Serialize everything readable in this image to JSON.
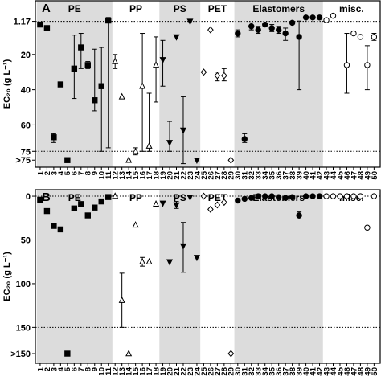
{
  "chart_data": [
    {
      "type": "scatter",
      "panel_label": "A",
      "ylabel": "EC₂₀ (g L⁻¹)",
      "xlim": [
        0.3,
        50.9
      ],
      "xticks": [
        1,
        2,
        3,
        4,
        5,
        6,
        7,
        8,
        9,
        10,
        11,
        12,
        13,
        14,
        15,
        16,
        17,
        18,
        19,
        20,
        21,
        22,
        23,
        24,
        25,
        26,
        27,
        28,
        29,
        30,
        31,
        32,
        33,
        34,
        35,
        36,
        37,
        38,
        39,
        40,
        41,
        42,
        43,
        44,
        45,
        46,
        47,
        48,
        49,
        50
      ],
      "ylim": [
        -10.5,
        84
      ],
      "y_reversed": true,
      "yticks": [
        1.17,
        20,
        40,
        60,
        75,
        {
          "value": 80,
          "label": ">75"
        }
      ],
      "hlines": [
        1.17,
        75
      ],
      "groups": [
        {
          "name": "PE",
          "shaded": true,
          "span": [
            0.5,
            11.6
          ],
          "marker": "square",
          "filled": true,
          "x": [
            1,
            2,
            3,
            4,
            5,
            6,
            7,
            8,
            9,
            10,
            11
          ],
          "values": [
            3,
            5,
            67,
            37,
            80,
            28,
            16,
            26,
            46,
            38,
            0.7
          ],
          "lower": [
            null,
            null,
            65,
            null,
            null,
            9,
            8,
            24,
            17,
            16,
            -1
          ],
          "upper": [
            null,
            null,
            70,
            null,
            null,
            45,
            28,
            28,
            52,
            75,
            73
          ]
        },
        {
          "name": "PP",
          "shaded": false,
          "span": [
            11.6,
            18.5
          ],
          "marker": "triangle-up",
          "filled": false,
          "x": [
            12,
            13,
            14,
            15,
            16,
            17,
            18
          ],
          "values": [
            24,
            44,
            80,
            75,
            38,
            72,
            26
          ],
          "lower": [
            20,
            null,
            null,
            73,
            8,
            42,
            10
          ],
          "upper": [
            28,
            null,
            null,
            77,
            75,
            75,
            47
          ]
        },
        {
          "name": "PS",
          "shaded": true,
          "span": [
            18.5,
            24.5
          ],
          "marker": "triangle-down",
          "filled": true,
          "x": [
            19,
            20,
            21,
            22,
            23,
            24
          ],
          "values": [
            23,
            70,
            10,
            63,
            1.2,
            80
          ],
          "lower": [
            12,
            58,
            null,
            44,
            null,
            null
          ],
          "upper": [
            38,
            75,
            null,
            82,
            null,
            null
          ]
        },
        {
          "name": "PET",
          "shaded": false,
          "span": [
            24.5,
            29.5
          ],
          "marker": "diamond",
          "filled": false,
          "x": [
            25,
            26,
            27,
            28,
            29
          ],
          "values": [
            30,
            6,
            32,
            32,
            80
          ],
          "lower": [
            null,
            null,
            30,
            28,
            null
          ],
          "upper": [
            null,
            null,
            35,
            35,
            null
          ]
        },
        {
          "name": "Elastomers",
          "shaded": true,
          "span": [
            29.5,
            42.5
          ],
          "marker": "circle",
          "filled": true,
          "x": [
            30,
            31,
            32,
            33,
            34,
            35,
            36,
            37,
            38,
            39,
            40,
            41,
            42
          ],
          "values": [
            8,
            68,
            4,
            6,
            3,
            5,
            6,
            8,
            2,
            10,
            -1,
            -1,
            -1
          ],
          "lower": [
            6,
            65,
            2,
            4,
            null,
            3,
            4,
            5,
            null,
            1,
            null,
            null,
            null
          ],
          "upper": [
            10,
            70,
            6,
            8,
            null,
            7,
            8,
            12,
            null,
            40,
            null,
            null,
            null
          ]
        },
        {
          "name": "misc.",
          "shaded": false,
          "span": [
            42.5,
            50.9
          ],
          "marker": "circle",
          "filled": false,
          "x": [
            43,
            44,
            46,
            47,
            48,
            49,
            50
          ],
          "values": [
            0.5,
            -2,
            26,
            8,
            10,
            26,
            10
          ],
          "lower": [
            null,
            null,
            8,
            null,
            null,
            15,
            8
          ],
          "upper": [
            null,
            null,
            42,
            null,
            null,
            40,
            12
          ]
        }
      ]
    },
    {
      "type": "scatter",
      "panel_label": "B",
      "ylabel": "EC₂₀ (g L⁻¹)",
      "xlim": [
        0.3,
        50.9
      ],
      "xticks": [
        1,
        2,
        3,
        4,
        5,
        6,
        7,
        8,
        9,
        10,
        11,
        12,
        13,
        14,
        15,
        16,
        17,
        18,
        19,
        20,
        21,
        22,
        23,
        24,
        25,
        26,
        27,
        28,
        29,
        30,
        31,
        32,
        33,
        34,
        35,
        36,
        37,
        38,
        39,
        40,
        41,
        42,
        43,
        44,
        45,
        46,
        47,
        48,
        49,
        50
      ],
      "ylim": [
        -7.4,
        191
      ],
      "y_reversed": true,
      "yticks": [
        0,
        50,
        100,
        150,
        {
          "value": 180,
          "label": ">150"
        }
      ],
      "hlines": [
        0,
        150
      ],
      "groups": [
        {
          "name": "PE",
          "shaded": true,
          "span": [
            0.5,
            11.6
          ],
          "marker": "square",
          "filled": true,
          "x": [
            1,
            2,
            3,
            4,
            5,
            6,
            7,
            8,
            9,
            10,
            11
          ],
          "values": [
            4,
            17,
            34,
            38,
            180,
            14,
            9,
            22,
            13,
            6,
            1
          ],
          "lower": [
            null,
            null,
            null,
            null,
            null,
            null,
            null,
            null,
            null,
            null,
            null
          ],
          "upper": [
            null,
            null,
            null,
            null,
            null,
            null,
            null,
            null,
            null,
            null,
            null
          ]
        },
        {
          "name": "PP",
          "shaded": false,
          "span": [
            11.6,
            18.5
          ],
          "marker": "triangle-up",
          "filled": false,
          "x": [
            12,
            13,
            14,
            15,
            16,
            17,
            18
          ],
          "values": [
            0,
            119,
            180,
            33,
            75,
            75,
            9
          ],
          "lower": [
            null,
            88,
            null,
            null,
            70,
            null,
            null
          ],
          "upper": [
            null,
            150,
            null,
            null,
            80,
            null,
            null
          ]
        },
        {
          "name": "PS",
          "shaded": true,
          "span": [
            18.5,
            24.5
          ],
          "marker": "triangle-down",
          "filled": true,
          "x": [
            19,
            20,
            21,
            22,
            23,
            24
          ],
          "values": [
            8,
            75,
            10,
            57,
            1,
            70
          ],
          "lower": [
            null,
            null,
            6,
            30,
            null,
            null
          ],
          "upper": [
            null,
            null,
            14,
            87,
            null,
            null
          ]
        },
        {
          "name": "PET",
          "shaded": false,
          "span": [
            24.5,
            29.5
          ],
          "marker": "diamond",
          "filled": false,
          "x": [
            25,
            26,
            27,
            28,
            29
          ],
          "values": [
            0,
            15,
            10,
            7,
            180
          ],
          "lower": [
            null,
            null,
            null,
            null,
            null
          ],
          "upper": [
            null,
            null,
            null,
            null,
            null
          ]
        },
        {
          "name": "Elastomers",
          "shaded": true,
          "span": [
            29.5,
            42.5
          ],
          "marker": "circle",
          "filled": true,
          "x": [
            30,
            31,
            32,
            33,
            34,
            35,
            36,
            37,
            38,
            39,
            40,
            41,
            42
          ],
          "values": [
            5,
            3,
            2,
            0,
            0,
            0,
            1,
            2,
            1,
            22,
            0,
            0,
            0
          ],
          "lower": [
            null,
            null,
            null,
            null,
            null,
            null,
            null,
            null,
            null,
            18,
            null,
            null,
            null
          ],
          "upper": [
            null,
            null,
            null,
            null,
            null,
            null,
            null,
            null,
            null,
            26,
            null,
            null,
            null
          ]
        },
        {
          "name": "misc.",
          "shaded": false,
          "span": [
            42.5,
            50.9
          ],
          "marker": "circle",
          "filled": false,
          "x": [
            43,
            44,
            45,
            46,
            47,
            48,
            49,
            50
          ],
          "values": [
            0,
            0,
            0,
            0,
            0,
            0,
            36,
            0
          ],
          "lower": [
            null,
            null,
            null,
            null,
            null,
            null,
            null,
            null
          ],
          "upper": [
            null,
            null,
            null,
            null,
            null,
            null,
            null,
            null
          ]
        }
      ]
    }
  ]
}
